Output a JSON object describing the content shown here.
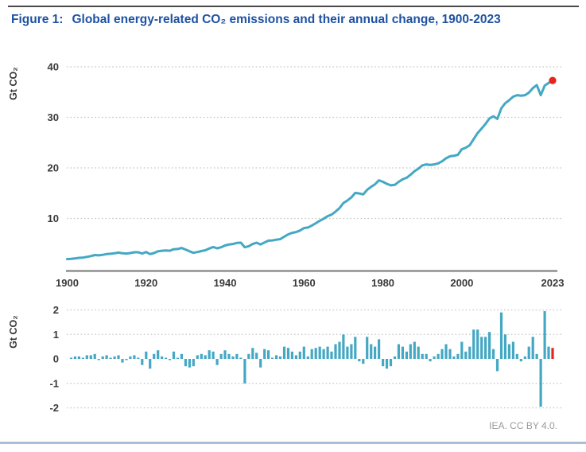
{
  "header": {
    "figure_label": "Figure 1:",
    "title": "Global energy-related CO₂ emissions and their annual change, 1900-2023"
  },
  "attribution": "IEA. CC BY 4.0.",
  "colors": {
    "series_teal": "#44a8c4",
    "highlight_red": "#e62520",
    "title_blue": "#1e52a3",
    "axis_gray": "#8f8f8f",
    "grid_gray": "#c6c6c6",
    "tick_text": "#3a3a3a",
    "attribution_gray": "#9a9a9a",
    "bottom_rule_blue": "#a7c0d8"
  },
  "chart_data": [
    {
      "type": "line",
      "title": "Global energy-related CO₂ emissions",
      "ylabel": "Gt CO₂",
      "xlabel": "",
      "x_range": [
        1900,
        2023
      ],
      "x_ticks": [
        1900,
        1920,
        1940,
        1960,
        1980,
        2000,
        2023
      ],
      "y_ticks": [
        40,
        30,
        20,
        10
      ],
      "ylim": [
        0,
        42
      ],
      "grid": "dotted-horizontal",
      "highlight_last_point": true,
      "values": [
        1.95,
        2.0,
        2.1,
        2.2,
        2.25,
        2.4,
        2.55,
        2.75,
        2.7,
        2.8,
        2.95,
        3.0,
        3.1,
        3.25,
        3.1,
        3.05,
        3.15,
        3.3,
        3.3,
        3.05,
        3.35,
        2.95,
        3.15,
        3.5,
        3.6,
        3.65,
        3.6,
        3.9,
        3.95,
        4.15,
        3.85,
        3.5,
        3.2,
        3.35,
        3.55,
        3.7,
        4.05,
        4.35,
        4.1,
        4.3,
        4.65,
        4.85,
        4.95,
        5.15,
        5.2,
        4.3,
        4.5,
        4.95,
        5.2,
        4.85,
        5.25,
        5.6,
        5.65,
        5.8,
        5.9,
        6.4,
        6.85,
        7.15,
        7.3,
        7.6,
        8.1,
        8.2,
        8.6,
        9.05,
        9.55,
        9.95,
        10.45,
        10.75,
        11.35,
        12.05,
        13.05,
        13.55,
        14.15,
        15.05,
        14.95,
        14.75,
        15.65,
        16.25,
        16.75,
        17.55,
        17.25,
        16.85,
        16.55,
        16.65,
        17.25,
        17.75,
        18.05,
        18.65,
        19.35,
        19.85,
        20.5,
        20.7,
        20.6,
        20.7,
        20.9,
        21.3,
        21.9,
        22.3,
        22.4,
        22.6,
        23.7,
        24.0,
        24.5,
        25.7,
        26.9,
        27.8,
        28.7,
        29.8,
        30.2,
        29.7,
        31.8,
        32.8,
        33.4,
        34.1,
        34.4,
        34.3,
        34.4,
        34.9,
        35.8,
        36.4,
        34.4,
        36.3,
        36.8,
        37.3
      ]
    },
    {
      "type": "bar",
      "title": "Annual change in global energy-related CO₂ emissions",
      "ylabel": "Gt CO₂",
      "xlabel": "",
      "x_range": [
        1901,
        2023
      ],
      "y_ticks": [
        2,
        1,
        0,
        -1,
        -2
      ],
      "ylim": [
        -2.2,
        2.2
      ],
      "grid": "dotted-horizontal",
      "highlight_last_bar": true,
      "values": [
        0.05,
        0.1,
        0.1,
        0.05,
        0.15,
        0.15,
        0.2,
        -0.05,
        0.1,
        0.15,
        0.05,
        0.1,
        0.15,
        -0.15,
        -0.05,
        0.1,
        0.15,
        0.05,
        -0.25,
        0.3,
        -0.4,
        0.2,
        0.35,
        0.1,
        0.05,
        -0.05,
        0.3,
        0.05,
        0.2,
        -0.3,
        -0.35,
        -0.3,
        0.15,
        0.2,
        0.15,
        0.35,
        0.3,
        -0.25,
        0.2,
        0.35,
        0.2,
        0.1,
        0.2,
        0.05,
        -1.0,
        0.2,
        0.45,
        0.25,
        -0.35,
        0.4,
        0.35,
        0.05,
        0.15,
        0.1,
        0.5,
        0.45,
        0.3,
        0.15,
        0.3,
        0.5,
        0.1,
        0.4,
        0.45,
        0.5,
        0.4,
        0.5,
        0.3,
        0.6,
        0.7,
        1.0,
        0.5,
        0.6,
        0.9,
        -0.1,
        -0.2,
        0.9,
        0.6,
        0.5,
        0.8,
        -0.3,
        -0.4,
        -0.3,
        0.1,
        0.6,
        0.5,
        0.3,
        0.6,
        0.7,
        0.5,
        0.2,
        0.2,
        -0.1,
        0.1,
        0.2,
        0.4,
        0.6,
        0.4,
        0.1,
        0.2,
        0.7,
        0.3,
        0.5,
        1.2,
        1.2,
        0.9,
        0.9,
        1.1,
        0.4,
        -0.5,
        1.9,
        1.0,
        0.6,
        0.7,
        0.2,
        -0.1,
        0.1,
        0.5,
        0.9,
        0.2,
        -1.95,
        1.95,
        0.5,
        0.45
      ]
    }
  ]
}
